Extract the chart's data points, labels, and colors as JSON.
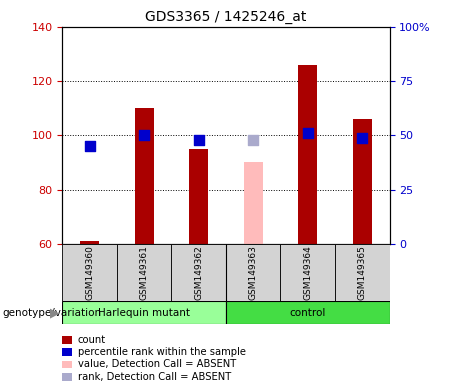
{
  "title": "GDS3365 / 1425246_at",
  "samples": [
    "GSM149360",
    "GSM149361",
    "GSM149362",
    "GSM149363",
    "GSM149364",
    "GSM149365"
  ],
  "count_values": [
    61,
    110,
    95,
    null,
    126,
    106
  ],
  "count_absent": [
    null,
    null,
    null,
    90,
    null,
    null
  ],
  "rank_values": [
    45,
    50,
    48,
    null,
    51,
    49
  ],
  "rank_absent": [
    null,
    null,
    null,
    48,
    null,
    null
  ],
  "ylim_left": [
    60,
    140
  ],
  "ylim_right": [
    0,
    100
  ],
  "yticks_left": [
    60,
    80,
    100,
    120,
    140
  ],
  "yticks_right": [
    0,
    25,
    50,
    75,
    100
  ],
  "ytick_right_labels": [
    "0",
    "25",
    "50",
    "75",
    "100%"
  ],
  "bar_color_present": "#aa0000",
  "bar_color_absent": "#ffbbbb",
  "rank_color_present": "#0000cc",
  "rank_color_absent": "#aaaacc",
  "group_harlequin_label": "Harlequin mutant",
  "group_control_label": "control",
  "group_harlequin_color": "#99ff99",
  "group_control_color": "#44dd44",
  "bar_width": 0.35,
  "rank_marker_size": 55,
  "background_color": "#ffffff",
  "left_tick_color": "#cc0000",
  "right_tick_color": "#0000cc",
  "genotype_label": "genotype/variation",
  "legend_items": [
    {
      "label": "count",
      "color": "#aa0000"
    },
    {
      "label": "percentile rank within the sample",
      "color": "#0000cc"
    },
    {
      "label": "value, Detection Call = ABSENT",
      "color": "#ffbbbb"
    },
    {
      "label": "rank, Detection Call = ABSENT",
      "color": "#aaaacc"
    }
  ]
}
